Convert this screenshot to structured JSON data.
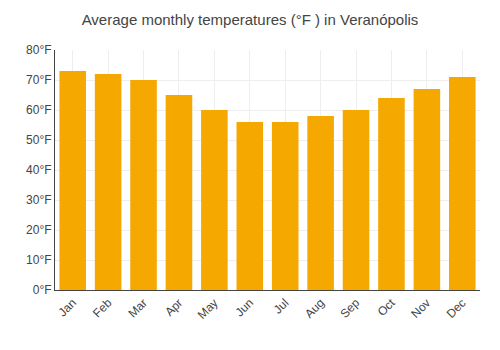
{
  "chart_data": {
    "type": "bar",
    "title": "Average monthly temperatures (°F ) in Veranópolis",
    "categories": [
      "Jan",
      "Feb",
      "Mar",
      "Apr",
      "May",
      "Jun",
      "Jul",
      "Aug",
      "Sep",
      "Oct",
      "Nov",
      "Dec"
    ],
    "values": [
      73,
      72,
      70,
      65,
      60,
      56,
      56,
      58,
      60,
      64,
      67,
      71
    ],
    "color": "#F5A800",
    "ylim": [
      0,
      80
    ],
    "yticks": [
      {
        "value": 0,
        "label": "0°F"
      },
      {
        "value": 10,
        "label": "10°F"
      },
      {
        "value": 20,
        "label": "20°F"
      },
      {
        "value": 30,
        "label": "30°F"
      },
      {
        "value": 40,
        "label": "40°F"
      },
      {
        "value": 50,
        "label": "50°F"
      },
      {
        "value": 60,
        "label": "60°F"
      },
      {
        "value": 70,
        "label": "70°F"
      },
      {
        "value": 80,
        "label": "80°F"
      }
    ],
    "grid": true
  }
}
